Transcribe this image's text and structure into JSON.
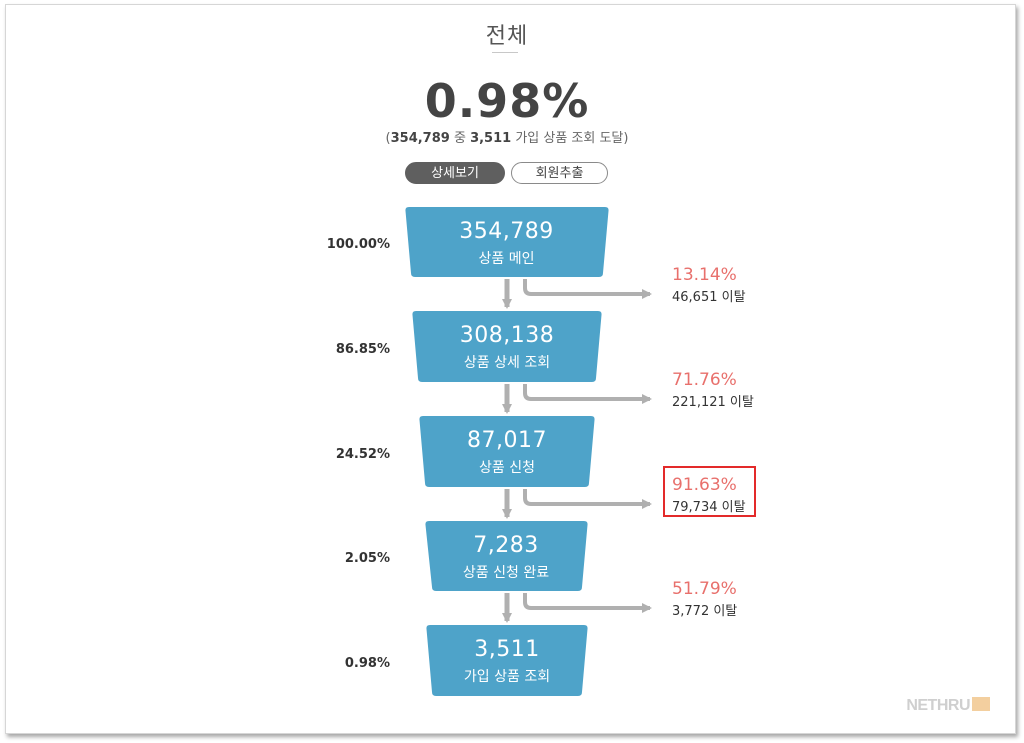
{
  "header": {
    "title": "전체",
    "overall_rate": "0.98%",
    "sub_open": "(",
    "sub_total": "354,789",
    "sub_mid": " 중 ",
    "sub_final": "3,511",
    "sub_tail": " 가입 상품 조회 도달)"
  },
  "buttons": {
    "detail": "상세보기",
    "export": "회원추출"
  },
  "stages": [
    {
      "pct": "100.00%",
      "count": "354,789",
      "name": "상품 메인"
    },
    {
      "pct": "86.85%",
      "count": "308,138",
      "name": "상품 상세 조회"
    },
    {
      "pct": "24.52%",
      "count": "87,017",
      "name": "상품 신청"
    },
    {
      "pct": "2.05%",
      "count": "7,283",
      "name": "상품 신청 완료"
    },
    {
      "pct": "0.98%",
      "count": "3,511",
      "name": "가입 상품 조회"
    }
  ],
  "dropoffs": [
    {
      "rate": "13.14%",
      "count": "46,651 이탈"
    },
    {
      "rate": "71.76%",
      "count": "221,121 이탈"
    },
    {
      "rate": "91.63%",
      "count": "79,734 이탈"
    },
    {
      "rate": "51.79%",
      "count": "3,772 이탈"
    }
  ],
  "colors": {
    "stage_fill": "#4ea3c9",
    "arrow": "#b0b0b0",
    "drop_rate": "#e8706c",
    "highlight": "#e32a2a"
  },
  "brand": {
    "logo_text": "NETHRU"
  }
}
